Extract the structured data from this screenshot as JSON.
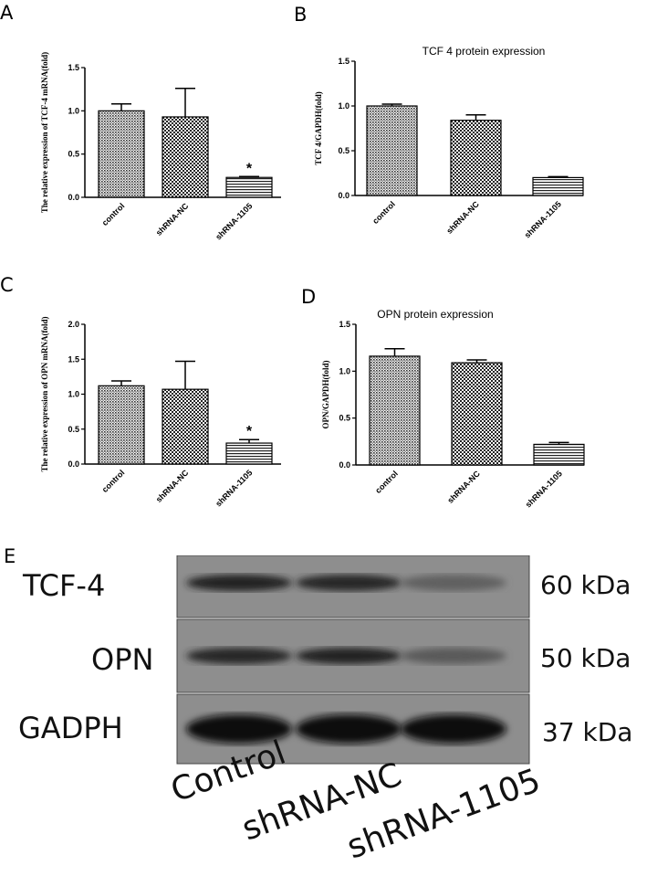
{
  "panels": [
    {
      "letter": "A",
      "title": "",
      "ylabel": "The relative expression of TCF-4 mRNA(fold)"
    },
    {
      "letter": "B",
      "title": "TCF 4 protein expression",
      "ylabel": "TCF 4/GAPDH(fold)"
    },
    {
      "letter": "C",
      "title": "",
      "ylabel": "The relative expression of OPN mRNA(fold)"
    },
    {
      "letter": "D",
      "title": "OPN protein expression",
      "ylabel": "OPN/GAPDH(fold)"
    },
    {
      "letter": "E"
    }
  ],
  "chart_data": [
    {
      "type": "bar",
      "panel": "A",
      "title": "",
      "xlabel": "",
      "ylabel": "The relative expression of TCF-4 mRNA(fold)",
      "categories": [
        "control",
        "shRNA-NC",
        "shRNA-1105"
      ],
      "values": [
        1.0,
        0.93,
        0.23
      ],
      "errors": [
        0.08,
        0.33,
        0.01
      ],
      "significance": [
        "",
        "",
        "*"
      ],
      "ylim": [
        0,
        1.5
      ],
      "yticks": [
        "0.0",
        "0.5",
        "1.0",
        "1.5"
      ],
      "patterns": [
        "fine",
        "check",
        "stripes"
      ]
    },
    {
      "type": "bar",
      "panel": "B",
      "title": "TCF 4 protein expression",
      "xlabel": "",
      "ylabel": "TCF 4/GAPDH(fold)",
      "categories": [
        "control",
        "shRNA-NC",
        "shRNA-1105"
      ],
      "values": [
        1.0,
        0.84,
        0.2
      ],
      "errors": [
        0.02,
        0.06,
        0.01
      ],
      "significance": [
        "",
        "",
        ""
      ],
      "ylim": [
        0,
        1.5
      ],
      "yticks": [
        "0.0",
        "0.5",
        "1.0",
        "1.5"
      ],
      "patterns": [
        "fine",
        "check",
        "stripes"
      ]
    },
    {
      "type": "bar",
      "panel": "C",
      "title": "",
      "xlabel": "",
      "ylabel": "The relative expression of OPN mRNA(fold)",
      "categories": [
        "control",
        "shRNA-NC",
        "shRNA-1105"
      ],
      "values": [
        1.12,
        1.07,
        0.3
      ],
      "errors": [
        0.07,
        0.4,
        0.05
      ],
      "significance": [
        "",
        "",
        "*"
      ],
      "ylim": [
        0,
        2.0
      ],
      "yticks": [
        "0.0",
        "0.5",
        "1.0",
        "1.5",
        "2.0"
      ],
      "patterns": [
        "fine",
        "check",
        "stripes"
      ]
    },
    {
      "type": "bar",
      "panel": "D",
      "title": "OPN protein expression",
      "xlabel": "",
      "ylabel": "OPN/GAPDH(fold)",
      "categories": [
        "control",
        "shRNA-NC",
        "shRNA-1105"
      ],
      "values": [
        1.16,
        1.09,
        0.22
      ],
      "errors": [
        0.08,
        0.03,
        0.02
      ],
      "significance": [
        "",
        "",
        ""
      ],
      "ylim": [
        0,
        1.5
      ],
      "yticks": [
        "0.0",
        "0.5",
        "1.0",
        "1.5"
      ],
      "patterns": [
        "fine",
        "check",
        "stripes"
      ]
    }
  ],
  "blot": {
    "rows": [
      {
        "protein": "TCF-4",
        "size": "60 kDa",
        "intensities": [
          0.85,
          0.8,
          0.35
        ]
      },
      {
        "protein": "OPN",
        "size": "50 kDa",
        "intensities": [
          0.8,
          0.85,
          0.4
        ]
      },
      {
        "protein": "GADPH",
        "size": "37 kDa",
        "intensities": [
          1.0,
          1.0,
          1.0
        ]
      }
    ],
    "lanes": [
      "Control",
      "shRNA-NC",
      "shRNA-1105"
    ]
  }
}
